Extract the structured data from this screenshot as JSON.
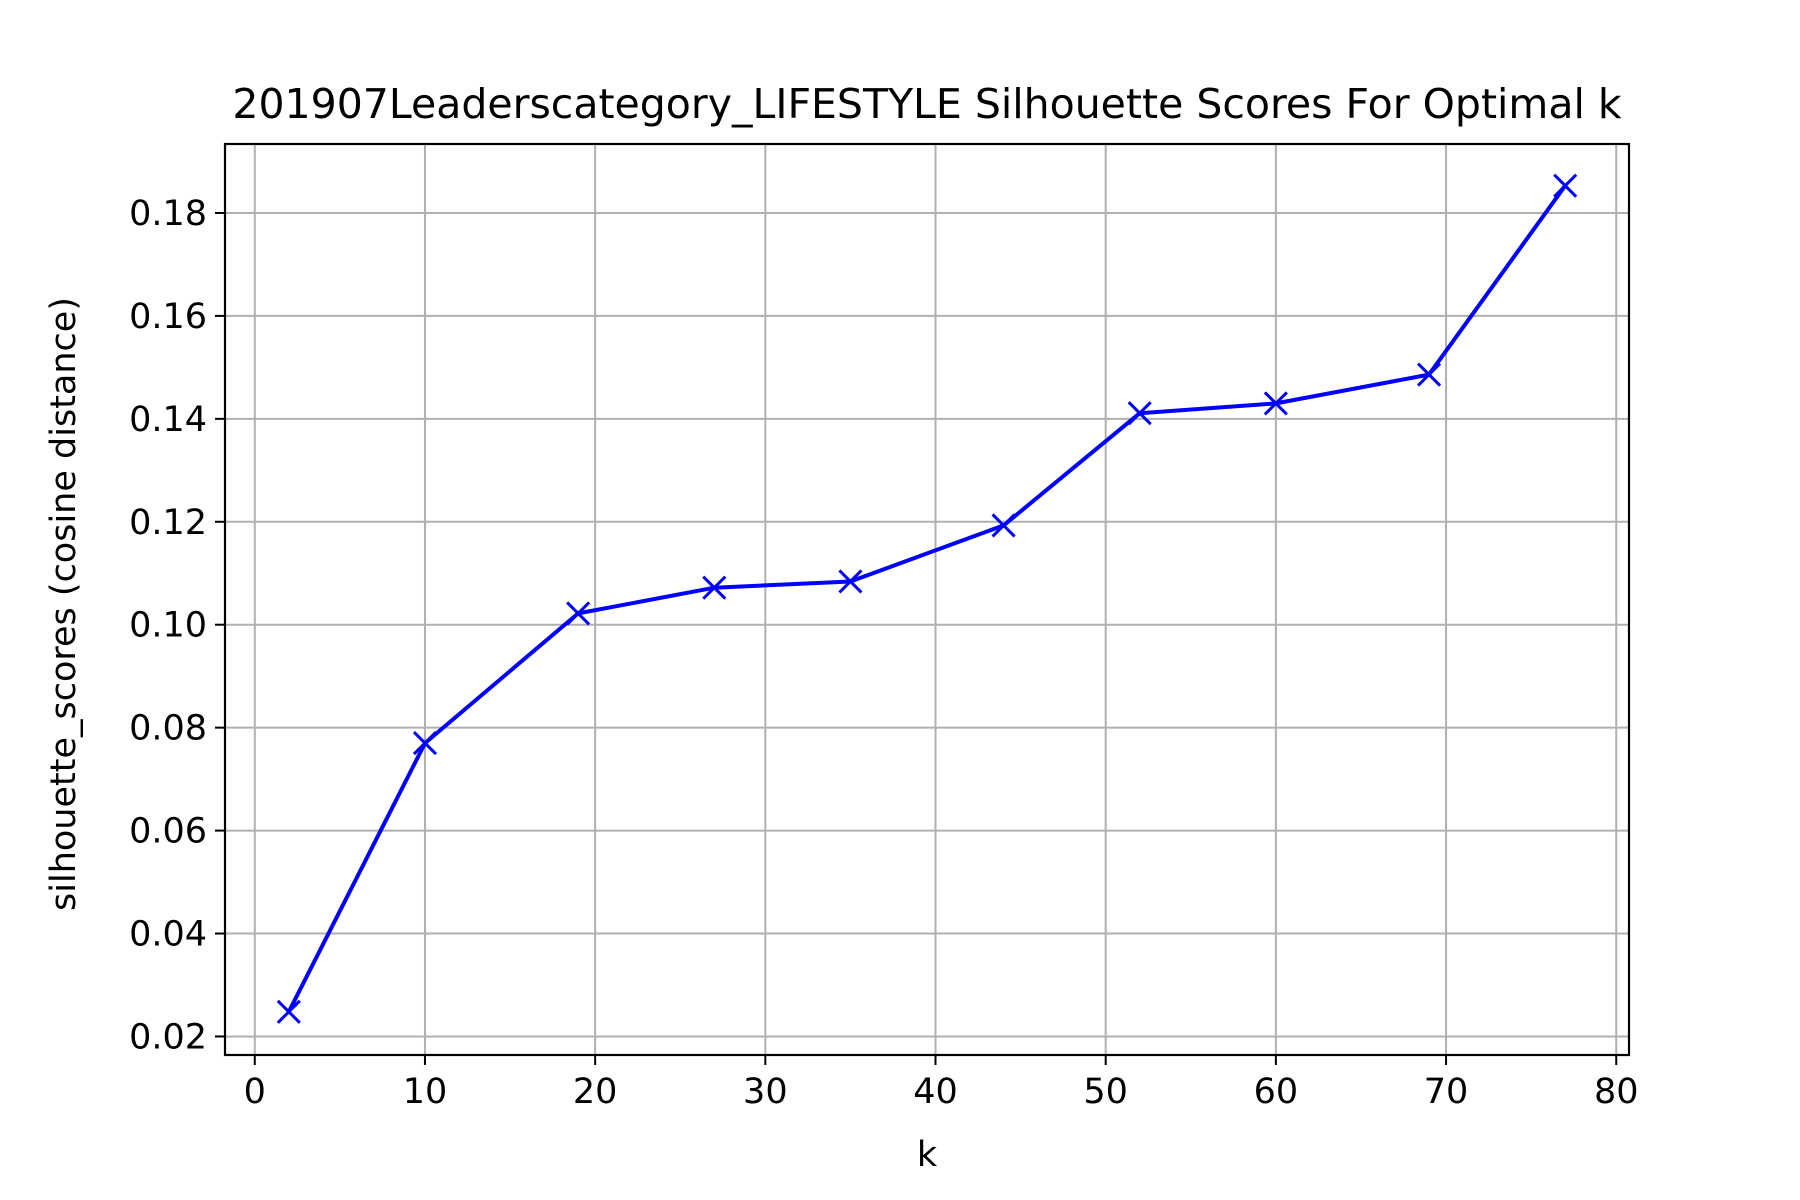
{
  "chart_data": {
    "type": "line",
    "title": "201907Leaderscategory_LIFESTYLE Silhouette Scores For Optimal k",
    "xlabel": "k",
    "ylabel": "silhouette_scores (cosine distance)",
    "xlim": [
      -1.75,
      80.75
    ],
    "ylim": [
      0.0164,
      0.1934
    ],
    "xticks": [
      0,
      10,
      20,
      30,
      40,
      50,
      60,
      70,
      80
    ],
    "xtick_labels": [
      "0",
      "10",
      "20",
      "30",
      "40",
      "50",
      "60",
      "70",
      "80"
    ],
    "yticks": [
      0.02,
      0.04,
      0.06,
      0.08,
      0.1,
      0.12,
      0.14,
      0.16,
      0.18
    ],
    "ytick_labels": [
      "0.02",
      "0.04",
      "0.06",
      "0.08",
      "0.10",
      "0.12",
      "0.14",
      "0.16",
      "0.18"
    ],
    "grid": true,
    "marker": "x",
    "line_color": "#0000ff",
    "grid_color": "#b0b0b0",
    "series": [
      {
        "x": [
          2,
          10,
          19,
          27,
          35,
          44,
          52,
          60,
          69,
          77
        ],
        "values": [
          0.0248,
          0.077,
          0.1022,
          0.1072,
          0.1084,
          0.1193,
          0.1411,
          0.143,
          0.1486,
          0.1853
        ]
      }
    ]
  }
}
